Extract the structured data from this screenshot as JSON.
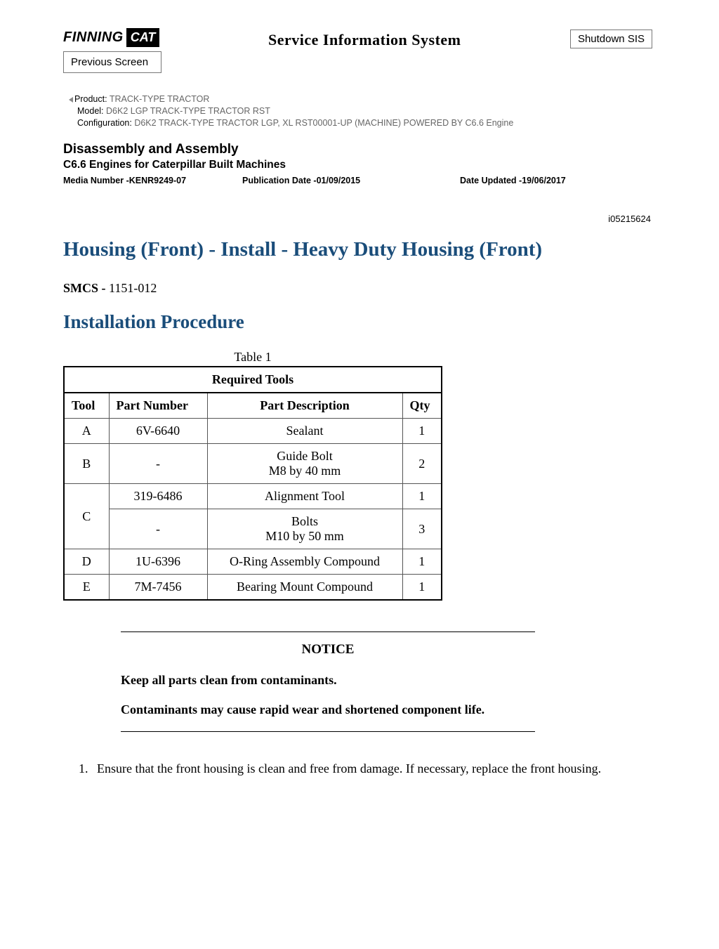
{
  "header": {
    "logo_finning": "FINNING",
    "logo_cat": "CAT",
    "sis_title": "Service Information System",
    "shutdown_label": "Shutdown SIS",
    "previous_label": "Previous Screen"
  },
  "meta": {
    "product_label": "Product:",
    "product_value": "TRACK-TYPE TRACTOR",
    "model_label": "Model:",
    "model_value": "D6K2 LGP TRACK-TYPE TRACTOR RST",
    "config_label": "Configuration:",
    "config_value": "D6K2 TRACK-TYPE TRACTOR LGP, XL RST00001-UP (MACHINE) POWERED BY C6.6 Engine"
  },
  "section": {
    "heading": "Disassembly and Assembly",
    "sub": "C6.6 Engines for Caterpillar Built Machines",
    "media": "Media Number -KENR9249-07",
    "pub_date": "Publication Date -01/09/2015",
    "date_updated": "Date Updated -19/06/2017",
    "doc_id": "i05215624"
  },
  "article": {
    "title": "Housing (Front) - Install - Heavy Duty Housing (Front)",
    "smcs_label": "SMCS -",
    "smcs_value": "1151-012",
    "procedure_title": "Installation Procedure",
    "accent_color": "#1a4d7a"
  },
  "table": {
    "caption": "Table 1",
    "title": "Required Tools",
    "columns": [
      "Tool",
      "Part Number",
      "Part Description",
      "Qty"
    ],
    "rows": [
      {
        "tool": "A",
        "part": "6V-6640",
        "desc_lines": [
          "Sealant"
        ],
        "qty": "1",
        "rowspan": 1
      },
      {
        "tool": "B",
        "part": "-",
        "desc_lines": [
          "Guide Bolt",
          "M8 by 40 mm"
        ],
        "qty": "2",
        "rowspan": 1
      },
      {
        "tool": "C",
        "part": "319-6486",
        "desc_lines": [
          "Alignment Tool"
        ],
        "qty": "1",
        "rowspan": 2
      },
      {
        "part": "-",
        "desc_lines": [
          "Bolts",
          "M10 by 50 mm"
        ],
        "qty": "3"
      },
      {
        "tool": "D",
        "part": "1U-6396",
        "desc_lines": [
          "O-Ring Assembly Compound"
        ],
        "qty": "1",
        "rowspan": 1
      },
      {
        "tool": "E",
        "part": "7M-7456",
        "desc_lines": [
          "Bearing Mount Compound"
        ],
        "qty": "1",
        "rowspan": 1
      }
    ]
  },
  "notice": {
    "title": "NOTICE",
    "line1": "Keep all parts clean from contaminants.",
    "line2": "Contaminants may cause rapid wear and shortened component life."
  },
  "steps": {
    "s1": "Ensure that the front housing is clean and free from damage. If necessary, replace the front housing."
  }
}
